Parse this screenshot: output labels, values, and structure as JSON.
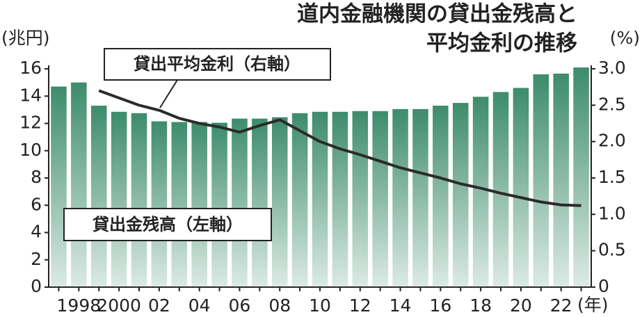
{
  "chart_data": {
    "type": "bar_line",
    "title": [
      "道内金融機関の貸出金残高と",
      "平均金利の推移"
    ],
    "ylabel": "(兆円)",
    "y2label": "(%)",
    "xlabel": "(年)",
    "categories": [
      null,
      "1998",
      null,
      "2000",
      null,
      "02",
      null,
      "04",
      null,
      "06",
      null,
      "08",
      null,
      "10",
      null,
      "12",
      null,
      "14",
      null,
      "16",
      null,
      "18",
      null,
      "20",
      null,
      "22",
      null
    ],
    "series": [
      {
        "name": "貸出金残高（左軸）",
        "color": "#3d8c6c",
        "values": [
          14.7,
          15.0,
          13.3,
          12.85,
          12.75,
          12.15,
          12.1,
          12.1,
          12.05,
          12.35,
          12.35,
          12.45,
          12.75,
          12.85,
          12.85,
          12.9,
          12.9,
          13.05,
          13.05,
          13.3,
          13.5,
          13.95,
          14.3,
          14.6,
          15.6,
          15.65,
          16.1
        ]
      },
      {
        "name": "貸出平均金利（右軸）",
        "color": "#2b2b2b",
        "axis": "y2",
        "values": [
          null,
          null,
          2.7,
          2.6,
          2.5,
          2.43,
          2.32,
          2.25,
          2.2,
          2.13,
          2.22,
          2.3,
          2.15,
          2.0,
          1.9,
          1.82,
          1.73,
          1.64,
          1.57,
          1.5,
          1.42,
          1.36,
          1.29,
          1.23,
          1.17,
          1.13,
          1.12
        ]
      }
    ],
    "ylim": [
      0,
      16
    ],
    "yticks": [
      0,
      2,
      4,
      6,
      8,
      10,
      12,
      14,
      16
    ],
    "y2lim": [
      0,
      3
    ],
    "y2ticks": [
      0,
      0.5,
      {
        "value": 1,
        "label": "1.0"
      },
      1.5,
      {
        "value": 2,
        "label": "2.0"
      },
      2.5,
      {
        "value": 3,
        "label": "3.0"
      }
    ]
  }
}
